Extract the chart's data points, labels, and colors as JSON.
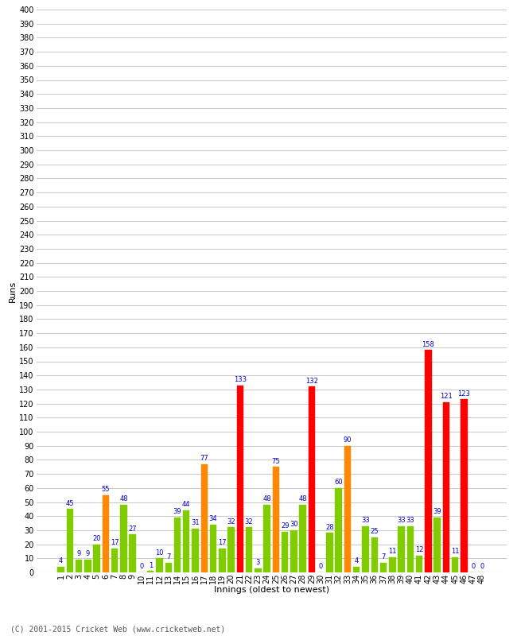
{
  "xlabel": "Innings (oldest to newest)",
  "ylabel": "Runs",
  "footnote": "(C) 2001-2015 Cricket Web (www.cricketweb.net)",
  "ylim": [
    0,
    400
  ],
  "yticks": [
    0,
    10,
    20,
    30,
    40,
    50,
    60,
    70,
    80,
    90,
    100,
    110,
    120,
    130,
    140,
    150,
    160,
    170,
    180,
    190,
    200,
    210,
    220,
    230,
    240,
    250,
    260,
    270,
    280,
    290,
    300,
    310,
    320,
    330,
    340,
    350,
    360,
    370,
    380,
    390,
    400
  ],
  "innings": [
    1,
    2,
    3,
    4,
    5,
    6,
    7,
    8,
    9,
    10,
    11,
    12,
    13,
    14,
    15,
    16,
    17,
    18,
    19,
    20,
    21,
    22,
    23,
    24,
    25,
    26,
    27,
    28,
    29,
    30,
    31,
    32,
    33,
    34,
    35,
    36,
    37,
    38,
    39,
    40,
    41,
    42,
    43,
    44,
    45,
    46,
    47,
    48
  ],
  "values": [
    4,
    45,
    9,
    9,
    20,
    55,
    17,
    48,
    27,
    0,
    1,
    10,
    7,
    39,
    44,
    31,
    77,
    34,
    17,
    32,
    133,
    32,
    3,
    48,
    75,
    29,
    30,
    48,
    132,
    0,
    28,
    60,
    90,
    4,
    33,
    25,
    7,
    11,
    33,
    33,
    12,
    158,
    39,
    121,
    11,
    123,
    0,
    0
  ],
  "colors": [
    "#80cc00",
    "#80cc00",
    "#80cc00",
    "#80cc00",
    "#80cc00",
    "#ff8800",
    "#80cc00",
    "#80cc00",
    "#80cc00",
    "#80cc00",
    "#80cc00",
    "#80cc00",
    "#80cc00",
    "#80cc00",
    "#80cc00",
    "#80cc00",
    "#ff8800",
    "#80cc00",
    "#80cc00",
    "#80cc00",
    "#ff0000",
    "#80cc00",
    "#80cc00",
    "#80cc00",
    "#ff8800",
    "#80cc00",
    "#80cc00",
    "#80cc00",
    "#ff0000",
    "#80cc00",
    "#80cc00",
    "#80cc00",
    "#ff8800",
    "#80cc00",
    "#80cc00",
    "#80cc00",
    "#80cc00",
    "#80cc00",
    "#80cc00",
    "#80cc00",
    "#80cc00",
    "#ff0000",
    "#80cc00",
    "#ff0000",
    "#80cc00",
    "#ff0000",
    "#80cc00",
    "#80cc00"
  ],
  "bg_color": "#ffffff",
  "grid_color": "#cccccc",
  "label_color": "#0000cc",
  "title_color": "#000000",
  "axis_label_color": "#000000",
  "footnote_color": "#555555"
}
